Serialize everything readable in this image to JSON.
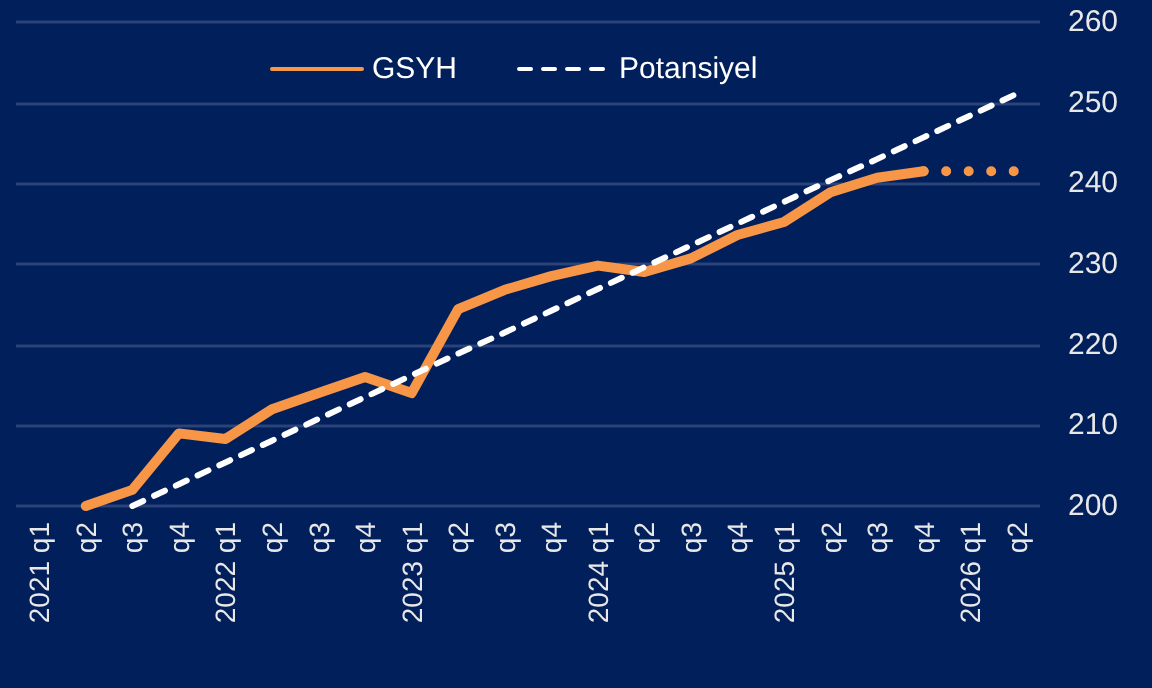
{
  "chart_data": {
    "type": "line",
    "categories": [
      "2021 q1",
      "q2",
      "q3",
      "q4",
      "2022 q1",
      "q2",
      "q3",
      "q4",
      "2023 q1",
      "q2",
      "q3",
      "q4",
      "2024 q1",
      "q2",
      "q3",
      "q4",
      "2025 q1",
      "q2",
      "q3",
      "q4",
      "2026 q1",
      "q2"
    ],
    "series": [
      {
        "name": "GSYH",
        "color": "#f79646",
        "line_style": "solid",
        "values": [
          null,
          200,
          202,
          209,
          208.3,
          212,
          214,
          216,
          214,
          224.4,
          226.8,
          228.5,
          229.8,
          229,
          230.7,
          233.6,
          235.2,
          238.9,
          240.7,
          241.5,
          null,
          null
        ]
      },
      {
        "color": "#f79646",
        "line_style": "dotted",
        "values": [
          null,
          null,
          null,
          null,
          null,
          null,
          null,
          null,
          null,
          null,
          null,
          null,
          null,
          null,
          null,
          null,
          null,
          null,
          null,
          241.5,
          241.5,
          241.5
        ]
      },
      {
        "name": "Potansiyel",
        "color": "#ffffff",
        "line_style": "dashed",
        "values": [
          null,
          null,
          200,
          202.7,
          205.4,
          208.1,
          210.8,
          213.5,
          216.2,
          218.9,
          221.5,
          224.2,
          226.9,
          229.6,
          232.3,
          235,
          237.7,
          240.4,
          243,
          245.7,
          248.4,
          251.1
        ]
      }
    ],
    "ylim": [
      200,
      260
    ],
    "yticks": [
      200,
      210,
      220,
      230,
      240,
      250,
      260
    ],
    "grid": "y",
    "legend": "top",
    "marker": "none"
  }
}
